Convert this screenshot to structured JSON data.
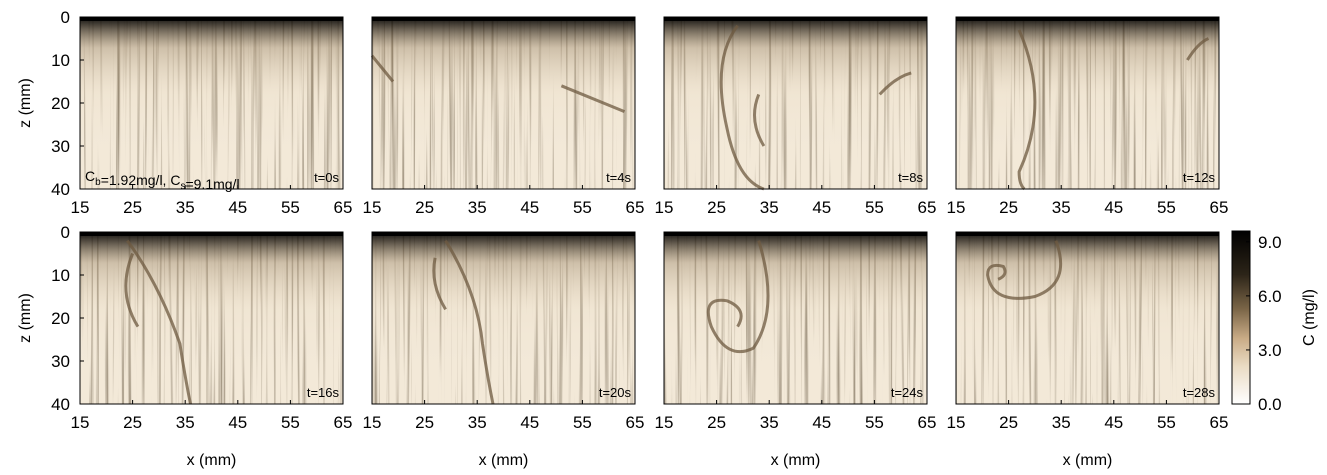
{
  "chart_data": {
    "type": "heatmap",
    "panels": [
      {
        "time_label": "t=0s",
        "t": 0
      },
      {
        "time_label": "t=4s",
        "t": 4
      },
      {
        "time_label": "t=8s",
        "t": 8
      },
      {
        "time_label": "t=12s",
        "t": 12
      },
      {
        "time_label": "t=16s",
        "t": 16
      },
      {
        "time_label": "t=20s",
        "t": 20
      },
      {
        "time_label": "t=24s",
        "t": 24
      },
      {
        "time_label": "t=28s",
        "t": 28
      }
    ],
    "xlabel": "x (mm)",
    "ylabel": "z (mm)",
    "xlim": [
      15,
      65
    ],
    "ylim": [
      0,
      40
    ],
    "x_ticks": [
      "15",
      "25",
      "35",
      "45",
      "55",
      "65"
    ],
    "y_ticks": [
      "0",
      "10",
      "20",
      "30",
      "40"
    ],
    "annotation": {
      "cb_main": "C",
      "cb_sub": "b",
      "cb_value": "=1.92mg/l, ",
      "cs_main": "C",
      "cs_sub": "s",
      "cs_value": "=9.1mg/l"
    },
    "colorbar": {
      "label": "C  (mg/l)",
      "range": [
        0,
        9.6
      ],
      "ticks": [
        "0.0",
        "3.0",
        "6.0",
        "9.0"
      ],
      "tick_values": [
        0,
        3,
        6,
        9
      ],
      "colors": [
        "#ffffff",
        "#e8d8bf",
        "#c9ab86",
        "#7a6547",
        "#2c2418",
        "#000000"
      ]
    },
    "background_concentration": 1.92,
    "surface_concentration": 9.1
  }
}
